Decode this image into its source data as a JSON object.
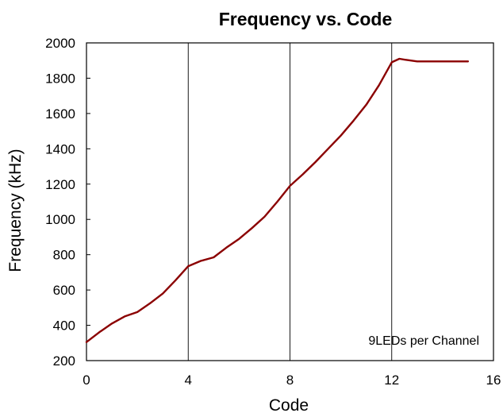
{
  "chart_data": {
    "type": "line",
    "title": "Frequency vs. Code",
    "xlabel": "Code",
    "ylabel": "Frequency (kHz)",
    "xlim": [
      0,
      16
    ],
    "ylim": [
      200,
      2000
    ],
    "xticks": [
      "0",
      "4",
      "8",
      "12",
      "16"
    ],
    "yticks": [
      "200",
      "400",
      "600",
      "800",
      "1000",
      "1200",
      "1400",
      "1600",
      "1800",
      "2000"
    ],
    "grid": "vertical lines at x = 4, 8, 12",
    "annotation": "9LEDs per Channel",
    "series": [
      {
        "color": "#8b0000",
        "x": [
          0,
          0.5,
          1,
          1.5,
          2,
          2.5,
          3,
          3.5,
          4,
          4.5,
          5,
          5.5,
          6,
          6.5,
          7,
          7.5,
          8,
          8.5,
          9,
          9.5,
          10,
          10.5,
          11,
          11.5,
          12,
          12.3,
          12.5,
          13,
          13.5,
          14,
          14.5,
          15
        ],
        "y": [
          305,
          360,
          410,
          450,
          475,
          525,
          580,
          655,
          735,
          765,
          785,
          840,
          890,
          950,
          1015,
          1100,
          1190,
          1255,
          1325,
          1400,
          1475,
          1560,
          1650,
          1760,
          1890,
          1910,
          1905,
          1895,
          1895,
          1895,
          1895,
          1895
        ]
      }
    ]
  }
}
